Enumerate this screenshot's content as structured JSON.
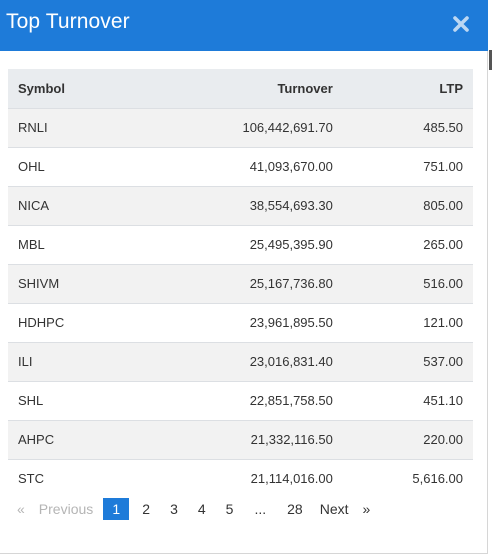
{
  "dialog": {
    "title": "Top Turnover",
    "close_icon": "close-icon",
    "accent_color": "#1e7bd9"
  },
  "table": {
    "headers": {
      "symbol": "Symbol",
      "turnover": "Turnover",
      "ltp": "LTP"
    },
    "rows": [
      {
        "symbol": "RNLI",
        "turnover": "106,442,691.70",
        "ltp": "485.50"
      },
      {
        "symbol": "OHL",
        "turnover": "41,093,670.00",
        "ltp": "751.00"
      },
      {
        "symbol": "NICA",
        "turnover": "38,554,693.30",
        "ltp": "805.00"
      },
      {
        "symbol": "MBL",
        "turnover": "25,495,395.90",
        "ltp": "265.00"
      },
      {
        "symbol": "SHIVM",
        "turnover": "25,167,736.80",
        "ltp": "516.00"
      },
      {
        "symbol": "HDHPC",
        "turnover": "23,961,895.50",
        "ltp": "121.00"
      },
      {
        "symbol": "ILI",
        "turnover": "23,016,831.40",
        "ltp": "537.00"
      },
      {
        "symbol": "SHL",
        "turnover": "22,851,758.50",
        "ltp": "451.10"
      },
      {
        "symbol": "AHPC",
        "turnover": "21,332,116.50",
        "ltp": "220.00"
      },
      {
        "symbol": "STC",
        "turnover": "21,114,016.00",
        "ltp": "5,616.00"
      }
    ]
  },
  "pagination": {
    "prev_arrow": "«",
    "prev_label": "Previous",
    "pages": [
      "1",
      "2",
      "3",
      "4",
      "5"
    ],
    "ellipsis": "...",
    "last_page": "28",
    "next_label": "Next",
    "next_arrow": "»",
    "current_page": "1"
  }
}
